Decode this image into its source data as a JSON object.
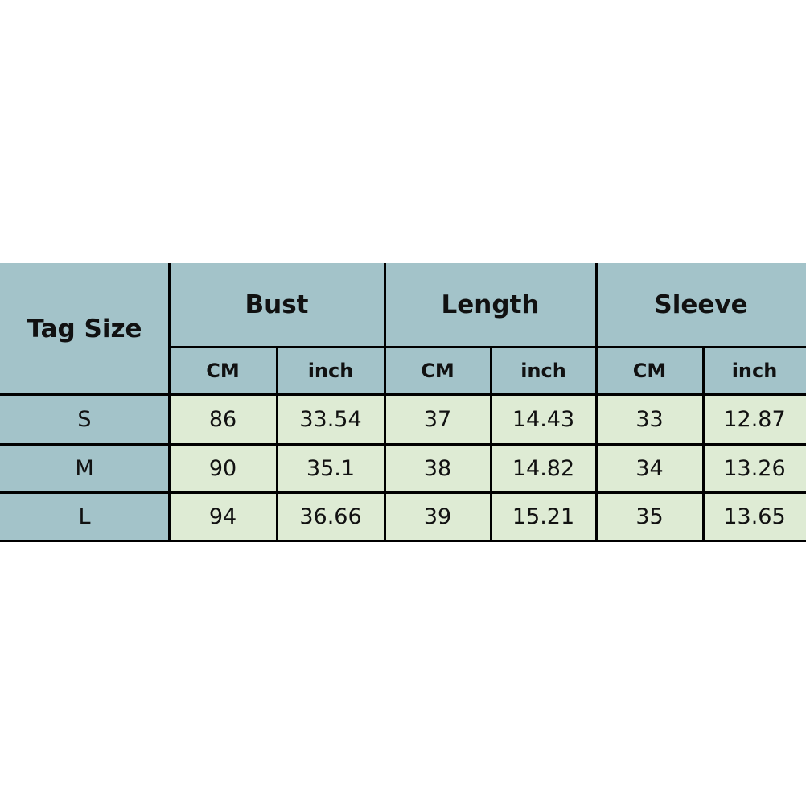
{
  "header": {
    "tag_size": "Tag Size",
    "groups": [
      "Bust",
      "Length",
      "Sleeve"
    ],
    "units": [
      "CM",
      "inch",
      "CM",
      "inch",
      "CM",
      "inch"
    ]
  },
  "rows": [
    {
      "size": "S",
      "values": [
        "86",
        "33.54",
        "37",
        "14.43",
        "33",
        "12.87"
      ]
    },
    {
      "size": "M",
      "values": [
        "90",
        "35.1",
        "38",
        "14.82",
        "34",
        "13.26"
      ]
    },
    {
      "size": "L",
      "values": [
        "94",
        "36.66",
        "39",
        "15.21",
        "35",
        "13.65"
      ]
    }
  ],
  "colors": {
    "header_bg": "#a3c3c9",
    "data_bg": "#deebd4",
    "border": "#000000"
  }
}
